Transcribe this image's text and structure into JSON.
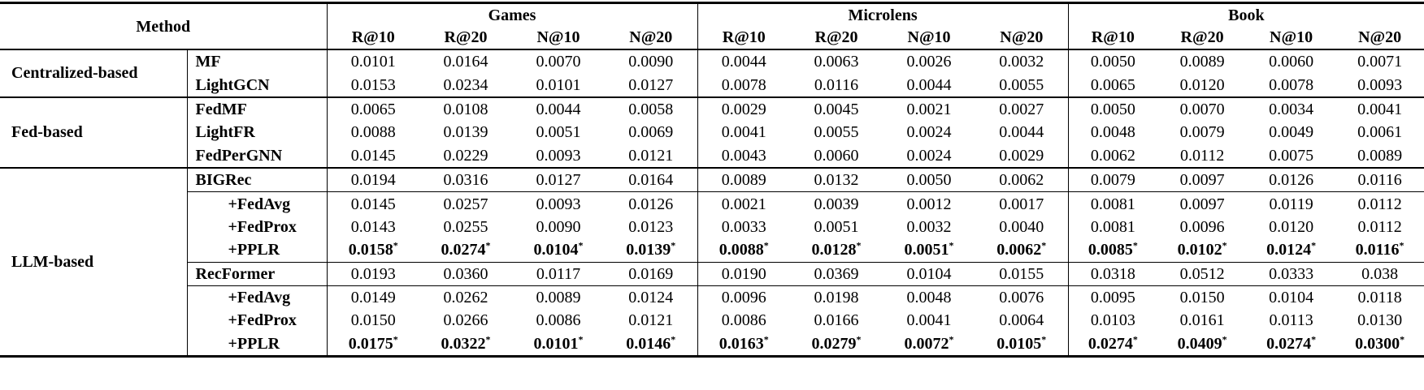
{
  "chart_data": {
    "type": "table",
    "method_header": "Method",
    "star_symbol": "*",
    "dataset_groups": [
      "Games",
      "Microlens",
      "Book"
    ],
    "metrics": [
      "R@10",
      "R@20",
      "N@10",
      "N@20"
    ],
    "sections": [
      {
        "label": "Centralized-based",
        "rows": [
          {
            "method": "MF",
            "indent": false,
            "starred": false,
            "rule_above": false,
            "values": [
              "0.0101",
              "0.0164",
              "0.0070",
              "0.0090",
              "0.0044",
              "0.0063",
              "0.0026",
              "0.0032",
              "0.0050",
              "0.0089",
              "0.0060",
              "0.0071"
            ]
          },
          {
            "method": "LightGCN",
            "indent": false,
            "starred": false,
            "rule_above": false,
            "values": [
              "0.0153",
              "0.0234",
              "0.0101",
              "0.0127",
              "0.0078",
              "0.0116",
              "0.0044",
              "0.0055",
              "0.0065",
              "0.0120",
              "0.0078",
              "0.0093"
            ]
          }
        ]
      },
      {
        "label": "Fed-based",
        "rows": [
          {
            "method": "FedMF",
            "indent": false,
            "starred": false,
            "rule_above": false,
            "values": [
              "0.0065",
              "0.0108",
              "0.0044",
              "0.0058",
              "0.0029",
              "0.0045",
              "0.0021",
              "0.0027",
              "0.0050",
              "0.0070",
              "0.0034",
              "0.0041"
            ]
          },
          {
            "method": "LightFR",
            "indent": false,
            "starred": false,
            "rule_above": false,
            "values": [
              "0.0088",
              "0.0139",
              "0.0051",
              "0.0069",
              "0.0041",
              "0.0055",
              "0.0024",
              "0.0044",
              "0.0048",
              "0.0079",
              "0.0049",
              "0.0061"
            ]
          },
          {
            "method": "FedPerGNN",
            "indent": false,
            "starred": false,
            "rule_above": false,
            "values": [
              "0.0145",
              "0.0229",
              "0.0093",
              "0.0121",
              "0.0043",
              "0.0060",
              "0.0024",
              "0.0029",
              "0.0062",
              "0.0112",
              "0.0075",
              "0.0089"
            ]
          }
        ]
      },
      {
        "label": "LLM-based",
        "rows": [
          {
            "method": "BIGRec",
            "indent": false,
            "starred": false,
            "rule_above": false,
            "values": [
              "0.0194",
              "0.0316",
              "0.0127",
              "0.0164",
              "0.0089",
              "0.0132",
              "0.0050",
              "0.0062",
              "0.0079",
              "0.0097",
              "0.0126",
              "0.0116"
            ]
          },
          {
            "method": "+FedAvg",
            "indent": true,
            "starred": false,
            "rule_above": true,
            "values": [
              "0.0145",
              "0.0257",
              "0.0093",
              "0.0126",
              "0.0021",
              "0.0039",
              "0.0012",
              "0.0017",
              "0.0081",
              "0.0097",
              "0.0119",
              "0.0112"
            ]
          },
          {
            "method": "+FedProx",
            "indent": true,
            "starred": false,
            "rule_above": false,
            "values": [
              "0.0143",
              "0.0255",
              "0.0090",
              "0.0123",
              "0.0033",
              "0.0051",
              "0.0032",
              "0.0040",
              "0.0081",
              "0.0096",
              "0.0120",
              "0.0112"
            ]
          },
          {
            "method": "+PPLR",
            "indent": true,
            "starred": true,
            "rule_above": false,
            "values": [
              "0.0158",
              "0.0274",
              "0.0104",
              "0.0139",
              "0.0088",
              "0.0128",
              "0.0051",
              "0.0062",
              "0.0085",
              "0.0102",
              "0.0124",
              "0.0116"
            ]
          },
          {
            "method": "RecFormer",
            "indent": false,
            "starred": false,
            "rule_above": true,
            "values": [
              "0.0193",
              "0.0360",
              "0.0117",
              "0.0169",
              "0.0190",
              "0.0369",
              "0.0104",
              "0.0155",
              "0.0318",
              "0.0512",
              "0.0333",
              "0.038"
            ]
          },
          {
            "method": "+FedAvg",
            "indent": true,
            "starred": false,
            "rule_above": true,
            "values": [
              "0.0149",
              "0.0262",
              "0.0089",
              "0.0124",
              "0.0096",
              "0.0198",
              "0.0048",
              "0.0076",
              "0.0095",
              "0.0150",
              "0.0104",
              "0.0118"
            ]
          },
          {
            "method": "+FedProx",
            "indent": true,
            "starred": false,
            "rule_above": false,
            "values": [
              "0.0150",
              "0.0266",
              "0.0086",
              "0.0121",
              "0.0086",
              "0.0166",
              "0.0041",
              "0.0064",
              "0.0103",
              "0.0161",
              "0.0113",
              "0.0130"
            ]
          },
          {
            "method": "+PPLR",
            "indent": true,
            "starred": true,
            "rule_above": false,
            "values": [
              "0.0175",
              "0.0322",
              "0.0101",
              "0.0146",
              "0.0163",
              "0.0279",
              "0.0072",
              "0.0105",
              "0.0274",
              "0.0409",
              "0.0274",
              "0.0300"
            ]
          }
        ]
      }
    ]
  }
}
